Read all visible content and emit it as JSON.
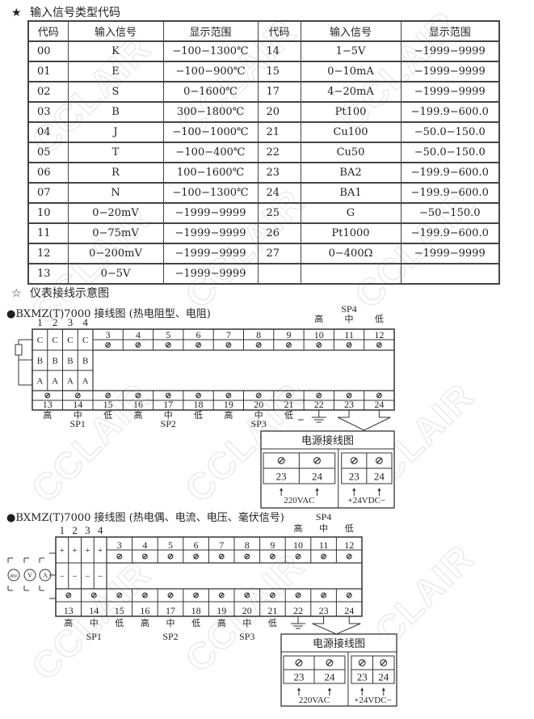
{
  "watermark": "CCLAIR",
  "table_section": {
    "star": "★",
    "title": "输入信号类型代码",
    "headers": [
      "代码",
      "输入信号",
      "显示范围",
      "代码",
      "输入信号",
      "显示范围"
    ],
    "rows": [
      [
        "00",
        "K",
        "−100−1300℃",
        "14",
        "1−5V",
        "−1999−9999"
      ],
      [
        "01",
        "E",
        "−100−900℃",
        "15",
        "0−10mA",
        "−1999−9999"
      ],
      [
        "02",
        "S",
        "0−1600℃",
        "17",
        "4−20mA",
        "−1999−9999"
      ],
      [
        "03",
        "B",
        "300−1800℃",
        "20",
        "Pt100",
        "−199.9−600.0"
      ],
      [
        "04",
        "J",
        "−100−1000℃",
        "21",
        "Cu100",
        "−50.0−150.0"
      ],
      [
        "05",
        "T",
        "−100−400℃",
        "22",
        "Cu50",
        "−50.0−150.0"
      ],
      [
        "06",
        "R",
        "100−1600℃",
        "23",
        "BA2",
        "−199.9−600.0"
      ],
      [
        "07",
        "N",
        "−100−1300℃",
        "24",
        "BA1",
        "−199.9−600.0"
      ],
      [
        "10",
        "0−20mV",
        "−1999−9999",
        "25",
        "G",
        "−50−150.0"
      ],
      [
        "11",
        "0−75mV",
        "−1999−9999",
        "26",
        "Pt1000",
        "−199.9−600.0"
      ],
      [
        "12",
        "0−200mV",
        "−1999−9999",
        "27",
        "0−400Ω",
        "−1999−9999"
      ],
      [
        "13",
        "0−5V",
        "−1999−9999",
        "",
        "",
        ""
      ]
    ]
  },
  "wiring_section": {
    "star": "☆",
    "title": "仪表接线示意图"
  },
  "diagram1": {
    "bullet": "●",
    "title": "BXMZ(T)7000  接线图 (热电阻型、电阻)",
    "input_numbers": [
      "1",
      "2",
      "3",
      "4"
    ],
    "input_row_labels": [
      "C",
      "B",
      "A"
    ],
    "top_terminals": [
      "3",
      "4",
      "5",
      "6",
      "7",
      "8",
      "9",
      "10",
      "11",
      "12"
    ],
    "bottom_terminals": [
      "13",
      "14",
      "15",
      "16",
      "17",
      "18",
      "19",
      "20",
      "21",
      "22",
      "23",
      "24"
    ],
    "bottom_labels": [
      "高",
      "中",
      "低",
      "高",
      "中",
      "低",
      "高",
      "中",
      "低"
    ],
    "sp_labels": [
      "SP1",
      "SP2",
      "SP3"
    ],
    "sp4": {
      "label": "SP4",
      "levels": [
        "高",
        "中",
        "低"
      ]
    },
    "power": {
      "title": "电源接线图",
      "ac": {
        "terminals": [
          "23",
          "24"
        ],
        "label": "220VAC"
      },
      "dc": {
        "terminals": [
          "23",
          "24"
        ],
        "label": "+24VDC−"
      }
    }
  },
  "diagram2": {
    "bullet": "●",
    "title": "BXMZ(T)7000 接线图 (热电偶、电流、电压、毫伏信号)",
    "input_numbers": [
      "1",
      "2",
      "3",
      "4"
    ],
    "input_row_labels": [
      "+",
      "−"
    ],
    "meters": [
      "mv",
      "V",
      "A"
    ],
    "top_terminals": [
      "3",
      "4",
      "5",
      "6",
      "7",
      "8",
      "9",
      "10",
      "11",
      "12"
    ],
    "bottom_terminals": [
      "13",
      "14",
      "15",
      "16",
      "17",
      "18",
      "19",
      "20",
      "21",
      "22",
      "23",
      "24"
    ],
    "bottom_labels": [
      "高",
      "中",
      "低",
      "高",
      "中",
      "低",
      "高",
      "中",
      "低"
    ],
    "sp_labels": [
      "SP1",
      "SP2",
      "SP3"
    ],
    "sp4": {
      "label": "SP4",
      "levels": [
        "高",
        "中",
        "低"
      ]
    },
    "power": {
      "title": "电源接线图",
      "ac": {
        "terminals": [
          "23",
          "24"
        ],
        "label": "220VAC"
      },
      "dc": {
        "terminals": [
          "23",
          "24"
        ],
        "label": "+24VDC−"
      }
    }
  }
}
